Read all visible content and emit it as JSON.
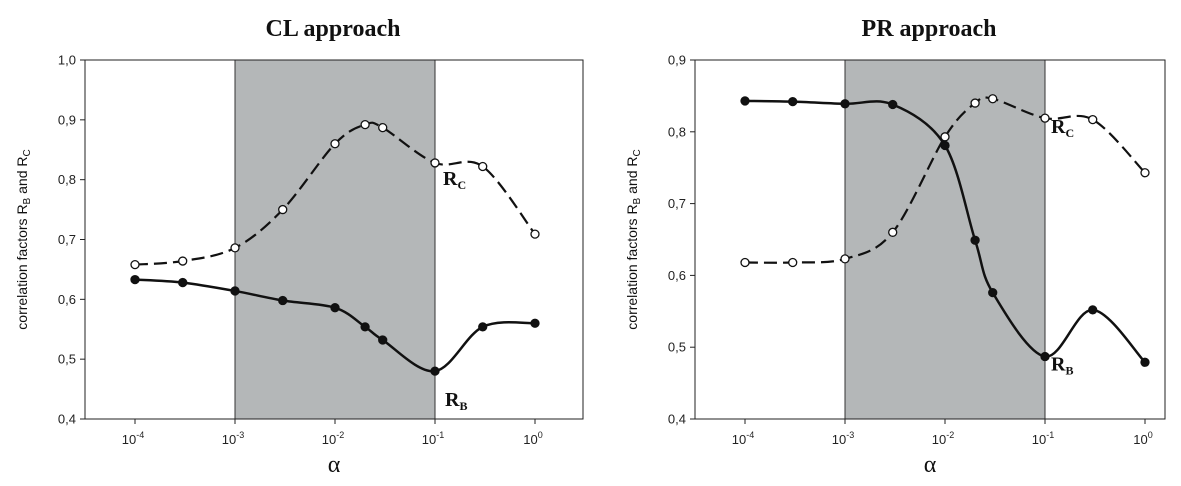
{
  "chart_data": [
    {
      "type": "line",
      "title": "CL approach",
      "xlabel": "α",
      "ylabel": "correlation factors R",
      "ylabel_parts": [
        "correlation factors R",
        "B",
        " and R",
        "C"
      ],
      "x_scale": "log",
      "xlim": [
        0.0001,
        1
      ],
      "ylim": [
        0.4,
        1.0
      ],
      "x_ticks": [
        {
          "base": "10",
          "exp": "-4",
          "value": 0.0001
        },
        {
          "base": "10",
          "exp": "-3",
          "value": 0.001
        },
        {
          "base": "10",
          "exp": "-2",
          "value": 0.01
        },
        {
          "base": "10",
          "exp": "-1",
          "value": 0.1
        },
        {
          "base": "10",
          "exp": "0",
          "value": 1
        }
      ],
      "y_ticks": [
        "0,4",
        "0,5",
        "0,6",
        "0,7",
        "0,8",
        "0,9",
        "1,0"
      ],
      "y_tick_values": [
        0.4,
        0.5,
        0.6,
        0.7,
        0.8,
        0.9,
        1.0
      ],
      "shaded_region": [
        0.001,
        0.1
      ],
      "series": [
        {
          "name": "RB",
          "label_main": "R",
          "label_sub": "B",
          "style": "solid",
          "marker": "filled-circle",
          "x": [
            0.0001,
            0.0003,
            0.001,
            0.003,
            0.01,
            0.02,
            0.03,
            0.1,
            0.3,
            1
          ],
          "y": [
            0.633,
            0.628,
            0.614,
            0.598,
            0.586,
            0.554,
            0.532,
            0.48,
            0.554,
            0.56
          ]
        },
        {
          "name": "RC",
          "label_main": "R",
          "label_sub": "C",
          "style": "dashed",
          "marker": "open-circle",
          "x": [
            0.0001,
            0.0003,
            0.001,
            0.003,
            0.01,
            0.02,
            0.03,
            0.1,
            0.3,
            1
          ],
          "y": [
            0.658,
            0.664,
            0.686,
            0.75,
            0.86,
            0.892,
            0.887,
            0.828,
            0.822,
            0.709
          ]
        }
      ]
    },
    {
      "type": "line",
      "title": "PR approach",
      "xlabel": "α",
      "ylabel": "correlation factors R",
      "ylabel_parts": [
        "correlation factors R",
        "B",
        " and R",
        "C"
      ],
      "x_scale": "log",
      "xlim": [
        0.0001,
        1
      ],
      "ylim": [
        0.4,
        0.9
      ],
      "x_ticks": [
        {
          "base": "10",
          "exp": "-4",
          "value": 0.0001
        },
        {
          "base": "10",
          "exp": "-3",
          "value": 0.001
        },
        {
          "base": "10",
          "exp": "-2",
          "value": 0.01
        },
        {
          "base": "10",
          "exp": "-1",
          "value": 0.1
        },
        {
          "base": "10",
          "exp": "0",
          "value": 1
        }
      ],
      "y_ticks": [
        "0,4",
        "0,5",
        "0,6",
        "0,7",
        "0,8",
        "0,9"
      ],
      "y_tick_values": [
        0.4,
        0.5,
        0.6,
        0.7,
        0.8,
        0.9
      ],
      "shaded_region": [
        0.001,
        0.1
      ],
      "series": [
        {
          "name": "RB",
          "label_main": "R",
          "label_sub": "B",
          "style": "solid",
          "marker": "filled-circle",
          "x": [
            0.0001,
            0.0003,
            0.001,
            0.003,
            0.01,
            0.02,
            0.03,
            0.1,
            0.3,
            1
          ],
          "y": [
            0.843,
            0.842,
            0.839,
            0.838,
            0.781,
            0.649,
            0.576,
            0.487,
            0.552,
            0.479
          ]
        },
        {
          "name": "RC",
          "label_main": "R",
          "label_sub": "C",
          "style": "dashed",
          "marker": "open-circle",
          "x": [
            0.0001,
            0.0003,
            0.001,
            0.003,
            0.01,
            0.02,
            0.03,
            0.1,
            0.3,
            1
          ],
          "y": [
            0.618,
            0.618,
            0.623,
            0.66,
            0.793,
            0.84,
            0.846,
            0.819,
            0.817,
            0.743
          ]
        }
      ]
    }
  ]
}
